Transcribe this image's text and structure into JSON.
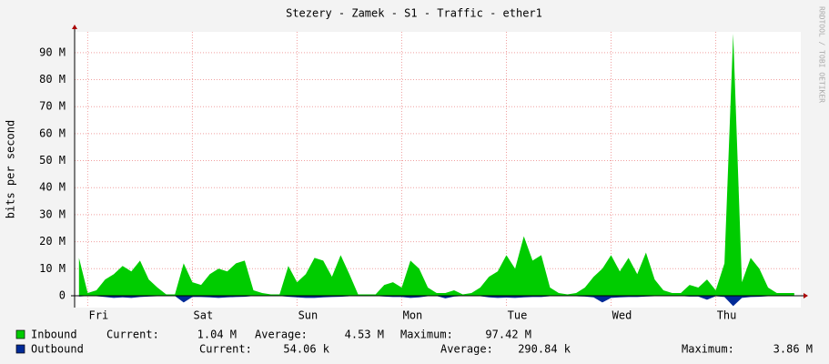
{
  "chart_data": {
    "type": "area",
    "title": "Stezery - Zamek - S1 - Traffic - ether1",
    "y_label": "bits per second",
    "side_text": "RRDTOOL / TOBI OETIKER",
    "x": [
      -2,
      0,
      2,
      4,
      6,
      8,
      10,
      12,
      14,
      16,
      18,
      20,
      22,
      24,
      26,
      28,
      30,
      32,
      34,
      36,
      38,
      40,
      42,
      44,
      46,
      48,
      50,
      52,
      54,
      56,
      58,
      60,
      62,
      64,
      66,
      68,
      70,
      72,
      74,
      76,
      78,
      80,
      82,
      84,
      86,
      88,
      90,
      92,
      94,
      96,
      98,
      100,
      102,
      104,
      106,
      108,
      110,
      112,
      114,
      116,
      118,
      120,
      122,
      124,
      126,
      128,
      130,
      132,
      134,
      136,
      138,
      140,
      142,
      144,
      146,
      148,
      150,
      152,
      154,
      156,
      158,
      160,
      162
    ],
    "xlim": [
      -3,
      163.5
    ],
    "xticks": [
      {
        "value": 0,
        "label": "Fri"
      },
      {
        "value": 24,
        "label": "Sat"
      },
      {
        "value": 48,
        "label": "Sun"
      },
      {
        "value": 72,
        "label": "Mon"
      },
      {
        "value": 96,
        "label": "Tue"
      },
      {
        "value": 120,
        "label": "Wed"
      },
      {
        "value": 144,
        "label": "Thu"
      }
    ],
    "ylim": [
      -4.4,
      97.7
    ],
    "yticks": [
      0,
      {
        "value": 10,
        "label": "10 M"
      },
      {
        "value": 20,
        "label": "20 M"
      },
      {
        "value": 30,
        "label": "30 M"
      },
      {
        "value": 40,
        "label": "40 M"
      },
      {
        "value": 50,
        "label": "50 M"
      },
      {
        "value": 60,
        "label": "60 M"
      },
      {
        "value": 70,
        "label": "70 M"
      },
      {
        "value": 80,
        "label": "80 M"
      },
      {
        "value": 90,
        "label": "90 M"
      }
    ],
    "grid": true,
    "series": [
      {
        "name": "Inbound",
        "color": "#00cc00",
        "values": [
          14,
          1,
          2,
          6,
          8,
          11,
          9,
          13,
          6,
          3,
          0.5,
          0.5,
          12,
          5,
          4,
          8,
          10,
          9,
          12,
          13,
          2,
          1,
          0.5,
          0.5,
          11,
          5,
          8,
          14,
          13,
          7,
          15,
          8,
          0.5,
          0.5,
          0.5,
          4,
          5,
          3,
          13,
          10,
          3,
          1,
          1,
          2,
          0.5,
          1,
          3,
          7,
          9,
          15,
          10,
          22,
          13,
          15,
          3,
          1,
          0.5,
          1,
          3,
          7,
          10,
          15,
          9,
          14,
          8,
          16,
          6,
          2,
          1,
          1,
          4,
          3,
          6,
          2,
          12,
          97,
          5,
          14,
          10,
          3,
          1,
          1,
          1
        ],
        "legend_stats": [
          "Current:",
          "1.04 M",
          "Average:",
          "4.53 M",
          "Maximum:",
          "97.42 M"
        ]
      },
      {
        "name": "Outbound",
        "color": "#002a97",
        "values": [
          -0.3,
          -0.1,
          -0.2,
          -0.5,
          -0.8,
          -0.6,
          -0.8,
          -0.5,
          -0.3,
          -0.2,
          -0.1,
          -0.1,
          -2.5,
          -0.5,
          -0.5,
          -0.6,
          -0.8,
          -0.6,
          -0.5,
          -0.4,
          -0.1,
          -0.1,
          -0.1,
          -0.1,
          -0.4,
          -0.6,
          -0.8,
          -0.8,
          -0.6,
          -0.5,
          -0.4,
          -0.2,
          -0.1,
          -0.1,
          -0.1,
          -0.3,
          -0.5,
          -0.5,
          -0.8,
          -0.6,
          -0.2,
          -0.1,
          -1,
          -0.3,
          -0.1,
          -0.1,
          -0.2,
          -0.6,
          -0.8,
          -0.7,
          -0.8,
          -0.6,
          -0.5,
          -0.5,
          -0.2,
          -0.1,
          -0.1,
          -0.2,
          -0.3,
          -0.6,
          -2.5,
          -0.8,
          -0.6,
          -0.5,
          -0.5,
          -0.3,
          -0.2,
          -0.1,
          -0.1,
          -0.1,
          -0.3,
          -0.3,
          -1.5,
          -0.2,
          -0.5,
          -3.86,
          -0.8,
          -0.5,
          -0.4,
          -0.2,
          -0.1,
          -0.1,
          -0.1
        ],
        "legend_stats": [
          "Current:",
          "54.06 k",
          "Average:",
          "290.84 k",
          "Maximum:",
          "3.86 M"
        ]
      }
    ]
  }
}
